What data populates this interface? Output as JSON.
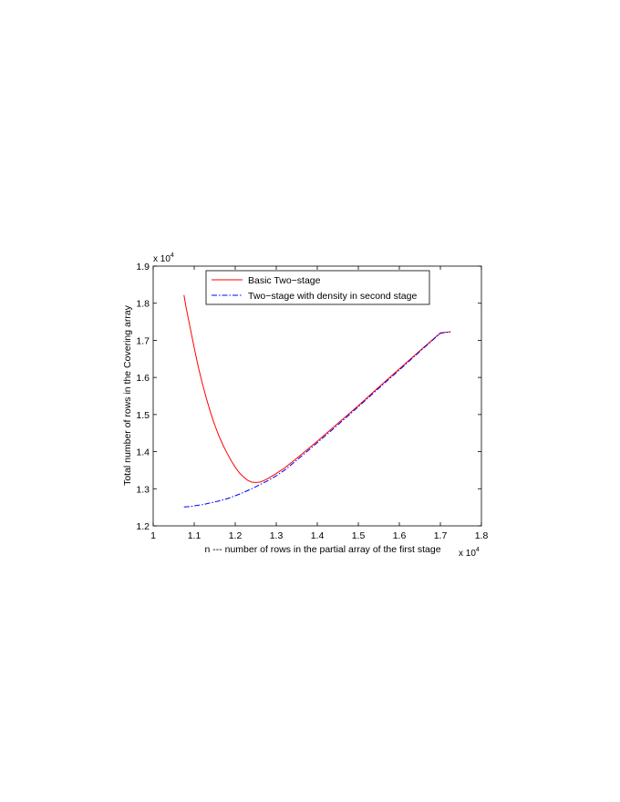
{
  "chart_data": {
    "type": "line",
    "title": "",
    "xlabel": "n --- number of rows in the partial array of the first stage",
    "ylabel": "Total number of rows in the Covering array",
    "x_multiplier": "x 10",
    "x_multiplier_exp": "4",
    "y_multiplier": "x 10",
    "y_multiplier_exp": "4",
    "xlim": [
      1.0,
      1.8
    ],
    "ylim": [
      1.2,
      1.9
    ],
    "xticks": [
      1.0,
      1.1,
      1.2,
      1.3,
      1.4,
      1.5,
      1.6,
      1.7,
      1.8
    ],
    "xtick_labels": [
      "1",
      "1.1",
      "1.2",
      "1.3",
      "1.4",
      "1.5",
      "1.6",
      "1.7",
      "1.8"
    ],
    "yticks": [
      1.2,
      1.3,
      1.4,
      1.5,
      1.6,
      1.7,
      1.8,
      1.9
    ],
    "ytick_labels": [
      "1.2",
      "1.3",
      "1.4",
      "1.5",
      "1.6",
      "1.7",
      "1.8",
      "1.9"
    ],
    "grid": false,
    "legend_position": "top-center",
    "series": [
      {
        "name": "Basic Two−stage",
        "color": "#ff0000",
        "dash": "solid",
        "x": [
          1.075,
          1.08,
          1.09,
          1.1,
          1.11,
          1.12,
          1.13,
          1.14,
          1.15,
          1.16,
          1.17,
          1.18,
          1.19,
          1.2,
          1.21,
          1.22,
          1.23,
          1.24,
          1.25,
          1.26,
          1.27,
          1.28,
          1.3,
          1.32,
          1.35,
          1.4,
          1.45,
          1.5,
          1.55,
          1.6,
          1.65,
          1.7,
          1.725
        ],
        "y": [
          1.822,
          1.79,
          1.735,
          1.68,
          1.628,
          1.583,
          1.542,
          1.505,
          1.472,
          1.443,
          1.418,
          1.396,
          1.376,
          1.358,
          1.343,
          1.332,
          1.323,
          1.318,
          1.317,
          1.318,
          1.322,
          1.328,
          1.341,
          1.356,
          1.382,
          1.428,
          1.476,
          1.524,
          1.574,
          1.623,
          1.672,
          1.72,
          1.723
        ]
      },
      {
        "name": "Two−stage with density in second stage",
        "color": "#0000ff",
        "dash": "dashdot",
        "x": [
          1.075,
          1.09,
          1.1,
          1.12,
          1.14,
          1.16,
          1.18,
          1.2,
          1.22,
          1.24,
          1.26,
          1.28,
          1.3,
          1.32,
          1.35,
          1.4,
          1.45,
          1.5,
          1.55,
          1.6,
          1.65,
          1.7,
          1.725
        ],
        "y": [
          1.251,
          1.252,
          1.254,
          1.257,
          1.262,
          1.267,
          1.273,
          1.281,
          1.29,
          1.3,
          1.311,
          1.322,
          1.335,
          1.35,
          1.377,
          1.424,
          1.472,
          1.521,
          1.571,
          1.62,
          1.67,
          1.719,
          1.723
        ]
      }
    ]
  }
}
